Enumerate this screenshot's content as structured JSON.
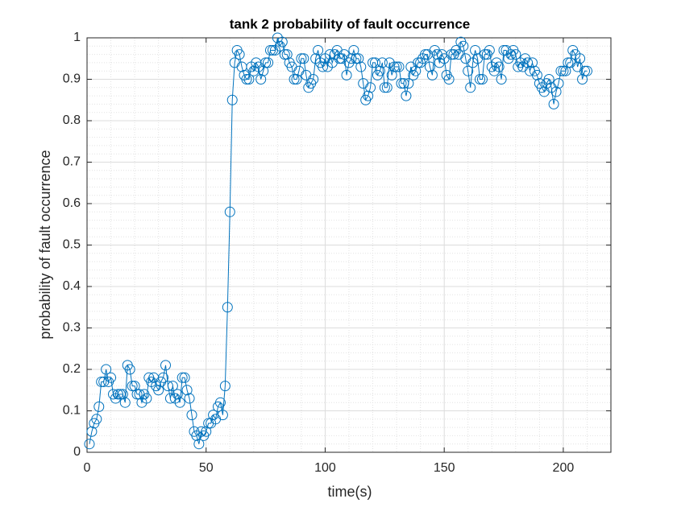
{
  "chart_data": {
    "type": "line",
    "title": "tank 2 probability of fault occurrence",
    "x_label": "time(s)",
    "y_label": "probability of fault occurrence",
    "xlim": [
      0,
      220
    ],
    "xticks": [
      0,
      50,
      100,
      150,
      200
    ],
    "ylim": [
      0,
      1
    ],
    "yticks": [
      0,
      0.1,
      0.2,
      0.3,
      0.4,
      0.5,
      0.6,
      0.7,
      0.8,
      0.9,
      1
    ],
    "grid": true,
    "minor_grid": true,
    "marker": "circle",
    "x": [
      1,
      2,
      3,
      4,
      5,
      6,
      7,
      8,
      9,
      10,
      11,
      12,
      13,
      14,
      15,
      16,
      17,
      18,
      19,
      20,
      21,
      22,
      23,
      24,
      25,
      26,
      27,
      28,
      29,
      30,
      31,
      32,
      33,
      34,
      35,
      36,
      37,
      38,
      39,
      40,
      41,
      42,
      43,
      44,
      45,
      46,
      47,
      48,
      49,
      50,
      51,
      52,
      53,
      54,
      55,
      56,
      57,
      58,
      59,
      60,
      61,
      62,
      63,
      64,
      65,
      66,
      67,
      68,
      69,
      70,
      71,
      72,
      73,
      74,
      75,
      76,
      77,
      78,
      79,
      80,
      81,
      82,
      83,
      84,
      85,
      86,
      87,
      88,
      89,
      90,
      91,
      92,
      93,
      94,
      95,
      96,
      97,
      98,
      99,
      100,
      101,
      102,
      103,
      104,
      105,
      106,
      107,
      108,
      109,
      110,
      111,
      112,
      113,
      114,
      115,
      116,
      117,
      118,
      119,
      120,
      121,
      122,
      123,
      124,
      125,
      126,
      127,
      128,
      129,
      130,
      131,
      132,
      133,
      134,
      135,
      136,
      137,
      138,
      139,
      140,
      141,
      142,
      143,
      144,
      145,
      146,
      147,
      148,
      149,
      150,
      151,
      152,
      153,
      154,
      155,
      156,
      157,
      158,
      159,
      160,
      161,
      162,
      163,
      164,
      165,
      166,
      167,
      168,
      169,
      170,
      171,
      172,
      173,
      174,
      175,
      176,
      177,
      178,
      179,
      180,
      181,
      182,
      183,
      184,
      185,
      186,
      187,
      188,
      189,
      190,
      191,
      192,
      193,
      194,
      195,
      196,
      197,
      198,
      199,
      200,
      201,
      202,
      203,
      204,
      205,
      206,
      207,
      208,
      209,
      210
    ],
    "series": [
      {
        "color": "#0072bd",
        "values": [
          0.02,
          0.05,
          0.07,
          0.08,
          0.11,
          0.17,
          0.17,
          0.2,
          0.17,
          0.18,
          0.14,
          0.13,
          0.14,
          0.14,
          0.14,
          0.12,
          0.21,
          0.2,
          0.16,
          0.16,
          0.14,
          0.14,
          0.12,
          0.14,
          0.13,
          0.18,
          0.17,
          0.18,
          0.16,
          0.15,
          0.17,
          0.18,
          0.21,
          0.16,
          0.13,
          0.16,
          0.13,
          0.14,
          0.12,
          0.18,
          0.18,
          0.15,
          0.13,
          0.09,
          0.05,
          0.04,
          0.02,
          0.05,
          0.04,
          0.05,
          0.07,
          0.07,
          0.09,
          0.08,
          0.11,
          0.12,
          0.09,
          0.16,
          0.35,
          0.58,
          0.85,
          0.94,
          0.97,
          0.96,
          0.93,
          0.91,
          0.9,
          0.9,
          0.93,
          0.92,
          0.94,
          0.93,
          0.9,
          0.92,
          0.94,
          0.94,
          0.97,
          0.97,
          0.97,
          1,
          0.98,
          0.99,
          0.96,
          0.96,
          0.94,
          0.93,
          0.9,
          0.9,
          0.92,
          0.95,
          0.95,
          0.91,
          0.88,
          0.89,
          0.9,
          0.95,
          0.97,
          0.94,
          0.93,
          0.95,
          0.93,
          0.96,
          0.94,
          0.96,
          0.97,
          0.95,
          0.95,
          0.96,
          0.91,
          0.94,
          0.95,
          0.97,
          0.95,
          0.95,
          0.93,
          0.89,
          0.85,
          0.86,
          0.88,
          0.94,
          0.94,
          0.91,
          0.92,
          0.94,
          0.88,
          0.88,
          0.94,
          0.91,
          0.93,
          0.93,
          0.93,
          0.89,
          0.89,
          0.86,
          0.89,
          0.93,
          0.91,
          0.92,
          0.94,
          0.94,
          0.95,
          0.96,
          0.96,
          0.93,
          0.91,
          0.97,
          0.96,
          0.94,
          0.96,
          0.95,
          0.91,
          0.9,
          0.96,
          0.96,
          0.97,
          0.96,
          0.99,
          0.98,
          0.95,
          0.92,
          0.88,
          0.94,
          0.97,
          0.95,
          0.9,
          0.9,
          0.96,
          0.96,
          0.97,
          0.93,
          0.92,
          0.94,
          0.93,
          0.9,
          0.97,
          0.97,
          0.95,
          0.96,
          0.97,
          0.96,
          0.93,
          0.94,
          0.93,
          0.95,
          0.94,
          0.92,
          0.94,
          0.92,
          0.91,
          0.89,
          0.88,
          0.87,
          0.89,
          0.9,
          0.88,
          0.84,
          0.87,
          0.89,
          0.92,
          0.92,
          0.92,
          0.94,
          0.94,
          0.97,
          0.96,
          0.93,
          0.95,
          0.9,
          0.92,
          0.92
        ]
      }
    ]
  }
}
